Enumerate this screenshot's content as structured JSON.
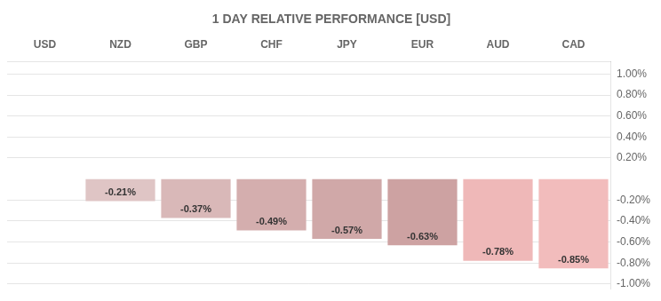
{
  "chart_data": {
    "type": "bar",
    "title": "1 DAY RELATIVE PERFORMANCE [USD]",
    "categories": [
      "USD",
      "NZD",
      "GBP",
      "CHF",
      "JPY",
      "EUR",
      "AUD",
      "CAD"
    ],
    "values": [
      0.0,
      -0.21,
      -0.37,
      -0.49,
      -0.57,
      -0.63,
      -0.78,
      -0.85
    ],
    "value_labels": [
      null,
      "-0.21%",
      "-0.37%",
      "-0.49%",
      "-0.57%",
      "-0.63%",
      "-0.78%",
      "-0.85%"
    ],
    "colors": [
      "#ffffff",
      "#dfc5c5",
      "#d9b8b8",
      "#d4aeae",
      "#d0a8a8",
      "#cda2a2",
      "#efb8b8",
      "#f2bcbc"
    ],
    "ylim": [
      -1.05,
      1.12
    ],
    "yticks": [
      {
        "value": 1.0,
        "label": "1.00%"
      },
      {
        "value": 0.8,
        "label": "0.80%"
      },
      {
        "value": 0.6,
        "label": "0.60%"
      },
      {
        "value": 0.4,
        "label": "0.40%"
      },
      {
        "value": 0.2,
        "label": "0.20%"
      },
      {
        "value": -0.2,
        "label": "-0.20%"
      },
      {
        "value": -0.4,
        "label": "-0.40%"
      },
      {
        "value": -0.6,
        "label": "-0.60%"
      },
      {
        "value": -0.8,
        "label": "-0.80%"
      },
      {
        "value": -1.0,
        "label": "-1.00%"
      }
    ],
    "grid": true,
    "data_labels": true
  }
}
